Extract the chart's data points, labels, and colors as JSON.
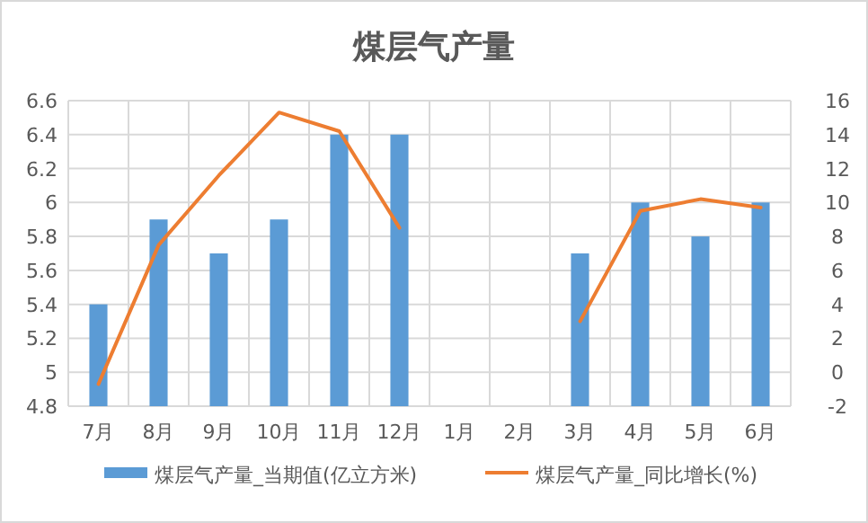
{
  "chart_data": {
    "type": "bar",
    "title": "煤层气产量",
    "categories": [
      "7月",
      "8月",
      "9月",
      "10月",
      "11月",
      "12月",
      "1月",
      "2月",
      "3月",
      "4月",
      "5月",
      "6月"
    ],
    "series": [
      {
        "name": "煤层气产量_当期值(亿立方米)",
        "color": "#5b9bd5",
        "values": [
          5.4,
          5.9,
          5.7,
          5.9,
          6.4,
          6.4,
          null,
          null,
          5.7,
          6.0,
          5.8,
          6.0
        ]
      },
      {
        "name": "煤层气产量_同比增长(%)",
        "type": "line",
        "axis": "y2",
        "color": "#ed7d31",
        "values": [
          -0.7,
          7.5,
          11.6,
          15.3,
          14.2,
          8.5,
          null,
          null,
          3.0,
          9.5,
          10.2,
          9.7
        ]
      }
    ],
    "ylim": [
      4.8,
      6.6
    ],
    "yticks": [
      4.8,
      5,
      5.2,
      5.4,
      5.6,
      5.8,
      6,
      6.2,
      6.4,
      6.6
    ],
    "y2lim": [
      -2,
      16
    ],
    "y2ticks": [
      -2,
      0,
      2,
      4,
      6,
      8,
      10,
      12,
      14,
      16
    ],
    "grid": true,
    "legend": "bottom"
  }
}
